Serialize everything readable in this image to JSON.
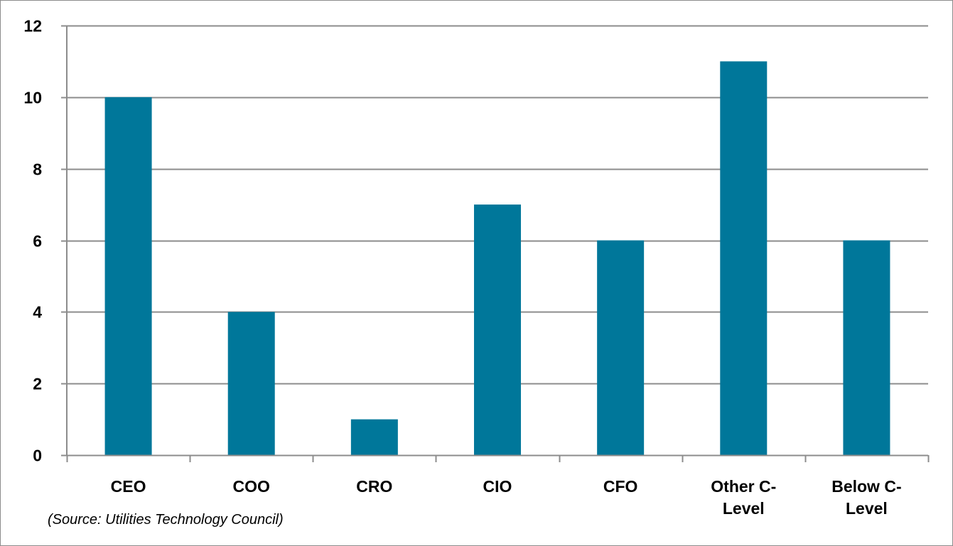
{
  "chart_data": {
    "type": "bar",
    "categories": [
      [
        "CEO"
      ],
      [
        "COO"
      ],
      [
        "CRO"
      ],
      [
        "CIO"
      ],
      [
        "CFO"
      ],
      [
        "Other C-",
        "Level"
      ],
      [
        "Below C-",
        "Level"
      ]
    ],
    "values": [
      10,
      4,
      1,
      7,
      6,
      11,
      6
    ],
    "ylim": [
      0,
      12
    ],
    "yticks": [
      0,
      2,
      4,
      6,
      8,
      10,
      12
    ],
    "grid": true,
    "bar_color": "#00779A",
    "grid_color": "#8c8c8c"
  },
  "source_note": "(Source:  Utilities Technology Council)"
}
